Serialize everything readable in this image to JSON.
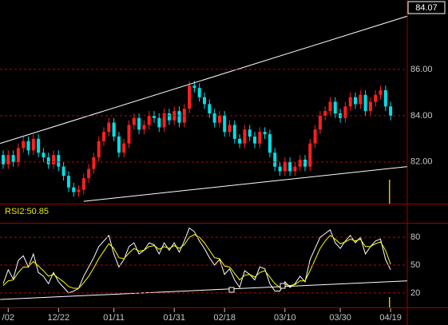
{
  "chart_data": [
    {
      "type": "candlestick",
      "categories": [
        null,
        "/02",
        null,
        null,
        null,
        null,
        null,
        null,
        null,
        null,
        null,
        "12/22",
        null,
        null,
        null,
        null,
        null,
        null,
        null,
        null,
        null,
        null,
        "01/11",
        null,
        null,
        null,
        null,
        null,
        null,
        null,
        null,
        null,
        null,
        null,
        "01/31",
        null,
        null,
        null,
        null,
        null,
        null,
        null,
        null,
        null,
        "02/18",
        null,
        null,
        null,
        null,
        null,
        null,
        null,
        null,
        null,
        null,
        null,
        "03/10",
        null,
        null,
        null,
        null,
        null,
        null,
        null,
        null,
        null,
        null,
        "03/30",
        null,
        null,
        null,
        null,
        null,
        null,
        null,
        null,
        null,
        "04/19"
      ],
      "open": [
        82.3,
        81.9,
        82.3,
        82.0,
        82.6,
        82.9,
        82.5,
        83.0,
        82.4,
        82.2,
        81.9,
        82.3,
        81.8,
        81.4,
        80.9,
        80.7,
        80.8,
        81.3,
        81.7,
        82.2,
        82.9,
        83.3,
        83.7,
        83.1,
        82.4,
        82.8,
        83.6,
        83.9,
        83.4,
        83.6,
        84.0,
        83.9,
        83.5,
        84.1,
        83.8,
        84.2,
        83.7,
        84.3,
        85.3,
        85.2,
        84.8,
        84.5,
        84.1,
        83.7,
        84.0,
        83.3,
        83.6,
        83.0,
        82.8,
        83.4,
        83.1,
        82.8,
        83.3,
        83.2,
        82.4,
        81.8,
        81.6,
        82.0,
        81.6,
        81.8,
        82.1,
        81.8,
        82.8,
        83.4,
        84.0,
        84.2,
        84.6,
        84.1,
        83.9,
        84.4,
        84.8,
        84.5,
        84.9,
        84.2,
        84.6,
        84.9,
        85.1,
        84.4
      ],
      "high": [
        82.5,
        82.5,
        82.5,
        82.8,
        83.1,
        83.1,
        83.2,
        83.2,
        82.6,
        82.4,
        82.5,
        82.5,
        82.0,
        81.6,
        81.1,
        81.0,
        81.5,
        81.9,
        82.4,
        83.1,
        83.5,
        83.9,
        83.9,
        83.3,
        83.0,
        83.8,
        84.1,
        84.1,
        83.8,
        84.2,
        84.2,
        84.1,
        84.3,
        84.3,
        84.4,
        84.4,
        84.5,
        85.5,
        85.5,
        85.4,
        85.0,
        84.7,
        84.3,
        84.2,
        84.2,
        83.8,
        83.8,
        83.2,
        83.6,
        83.6,
        83.3,
        83.5,
        83.5,
        83.4,
        82.6,
        82.0,
        82.2,
        82.2,
        82.0,
        82.3,
        82.3,
        83.0,
        83.6,
        84.2,
        84.4,
        84.8,
        84.8,
        84.3,
        84.6,
        85.0,
        85.0,
        85.1,
        85.1,
        84.8,
        85.1,
        85.3,
        85.3,
        84.6
      ],
      "low": [
        81.7,
        81.7,
        81.8,
        81.8,
        82.4,
        82.3,
        82.3,
        82.2,
        82.0,
        81.7,
        81.7,
        81.6,
        81.2,
        80.7,
        80.5,
        80.5,
        80.6,
        81.1,
        81.5,
        82.0,
        82.7,
        83.1,
        82.9,
        82.2,
        82.2,
        82.6,
        83.4,
        83.2,
        83.2,
        83.4,
        83.7,
        83.3,
        83.3,
        83.6,
        83.6,
        83.5,
        83.5,
        84.1,
        85.0,
        84.6,
        84.3,
        83.9,
        83.5,
        83.5,
        83.1,
        83.1,
        82.8,
        82.6,
        82.6,
        82.9,
        82.6,
        82.6,
        83.0,
        82.2,
        81.6,
        81.4,
        81.4,
        81.4,
        81.4,
        81.6,
        81.6,
        81.6,
        82.6,
        83.2,
        83.8,
        84.0,
        83.9,
        83.7,
        83.7,
        84.2,
        84.3,
        84.3,
        84.0,
        84.0,
        84.4,
        84.7,
        84.2,
        83.8
      ],
      "close": [
        81.9,
        82.3,
        82.0,
        82.6,
        82.9,
        82.5,
        83.0,
        82.4,
        82.2,
        81.9,
        82.3,
        81.8,
        81.4,
        80.9,
        80.7,
        80.8,
        81.3,
        81.7,
        82.2,
        82.9,
        83.3,
        83.7,
        83.1,
        82.4,
        82.8,
        83.6,
        83.9,
        83.4,
        83.6,
        84.0,
        83.9,
        83.5,
        84.1,
        83.8,
        84.2,
        83.7,
        84.3,
        85.3,
        85.2,
        84.8,
        84.5,
        84.1,
        83.7,
        84.0,
        83.3,
        83.6,
        83.0,
        82.8,
        83.4,
        83.1,
        82.8,
        83.3,
        83.2,
        82.4,
        81.8,
        81.6,
        82.0,
        81.6,
        81.8,
        82.1,
        81.8,
        82.8,
        83.4,
        84.0,
        84.2,
        84.6,
        84.1,
        83.9,
        84.4,
        84.8,
        84.5,
        84.9,
        84.2,
        84.6,
        84.9,
        85.1,
        84.4,
        84.0
      ],
      "up_color": "#ff2020",
      "down_color": "#00e0e8",
      "ylim": [
        80.2,
        89.0
      ],
      "yticks": [
        {
          "value": 86,
          "label": "86.00"
        },
        {
          "value": 84,
          "label": "84.00"
        },
        {
          "value": 82,
          "label": "82.00"
        }
      ],
      "grid": true,
      "last_price": 84.07,
      "trendlines": [
        {
          "x": [
            -0.6,
            80.3
          ],
          "values": [
            82.8,
            88.3
          ],
          "color": "#ffffff"
        },
        {
          "x": [
            16.0,
            80.3
          ],
          "values": [
            80.3,
            81.8
          ],
          "color": "#ffffff"
        }
      ]
    },
    {
      "type": "line",
      "label": "RSI2:50.85",
      "series": [
        {
          "color": "#ffffff",
          "values": [
            30,
            45,
            35,
            55,
            60,
            48,
            62,
            42,
            38,
            30,
            42,
            32,
            26,
            20,
            22,
            25,
            38,
            48,
            58,
            70,
            76,
            82,
            62,
            48,
            56,
            70,
            74,
            62,
            66,
            74,
            72,
            62,
            74,
            66,
            74,
            64,
            76,
            90,
            86,
            76,
            68,
            58,
            50,
            56,
            40,
            46,
            34,
            26,
            44,
            40,
            34,
            48,
            46,
            30,
            22,
            22,
            32,
            26,
            30,
            38,
            32,
            56,
            68,
            80,
            84,
            88,
            74,
            68,
            76,
            82,
            74,
            80,
            62,
            70,
            76,
            78,
            56,
            45
          ]
        },
        {
          "color": "#ffff00",
          "values": [
            28,
            33,
            34,
            42,
            48,
            48,
            54,
            49,
            44,
            38,
            40,
            36,
            32,
            27,
            25,
            25,
            31,
            38,
            47,
            57,
            65,
            73,
            68,
            58,
            57,
            63,
            68,
            65,
            66,
            70,
            71,
            67,
            70,
            68,
            71,
            68,
            72,
            80,
            83,
            80,
            74,
            66,
            58,
            57,
            49,
            48,
            41,
            34,
            39,
            40,
            37,
            42,
            44,
            37,
            30,
            26,
            29,
            28,
            29,
            33,
            33,
            44,
            56,
            68,
            76,
            82,
            78,
            73,
            75,
            78,
            76,
            78,
            70,
            70,
            73,
            75,
            66,
            50.85
          ]
        }
      ],
      "ylim": [
        4.4,
        95.6
      ],
      "yticks": [
        80,
        50,
        20
      ],
      "grid": true,
      "trendlines": [
        {
          "x": [
            -0.6,
            80.3
          ],
          "values": [
            13,
            33
          ],
          "color": "#ffffff"
        }
      ]
    }
  ]
}
